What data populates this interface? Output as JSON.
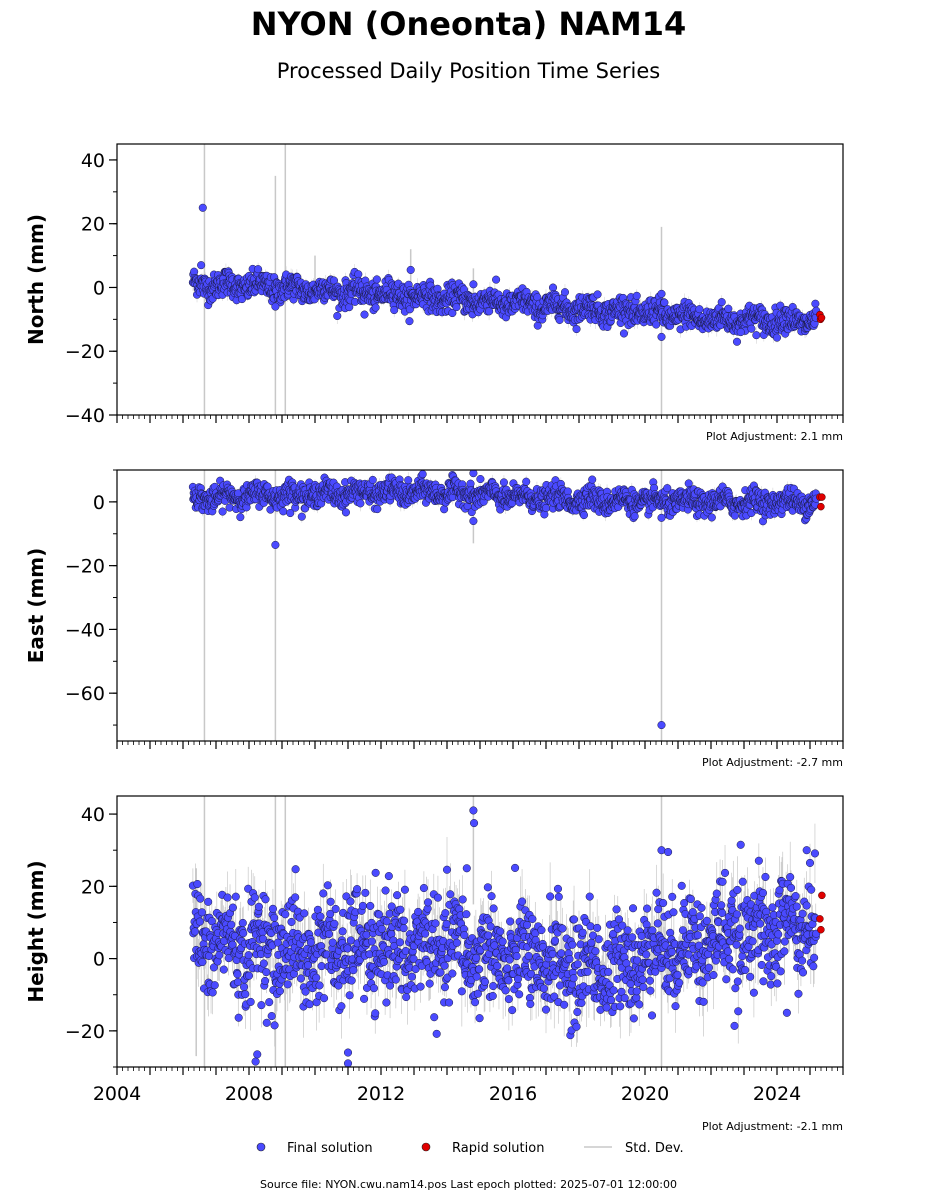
{
  "chart_data": {
    "type": "scatter",
    "title": "NYON (Oneonta) NAM14",
    "subtitle": "Processed Daily Position Time Series",
    "x_ticks": [
      "2004",
      "2008",
      "2012",
      "2016",
      "2020",
      "2024"
    ],
    "x_tick_values": [
      2004,
      2008,
      2012,
      2016,
      2020,
      2024
    ],
    "xlim": [
      2004,
      2026
    ],
    "legend": {
      "placement": "bottom-center",
      "items": [
        {
          "label": "Final solution",
          "color": "#4a4aff"
        },
        {
          "label": "Rapid solution",
          "color": "#e00000"
        },
        {
          "label": "Std. Dev.",
          "color": "#cfcfcf"
        }
      ]
    },
    "footer": "Source file: NYON.cwu.nam14.pos  Last epoch plotted: 2025-07-01 12:00:00",
    "panels": [
      {
        "ylabel": "North (mm)",
        "ylim": [
          -40,
          45
        ],
        "y_ticks": [
          -40,
          -20,
          0,
          20,
          40
        ],
        "y_tick_labels": [
          "−40",
          "−20",
          "0",
          "20",
          "40"
        ],
        "adjustment": "Plot Adjustment: 2.1 mm",
        "show_x_labels": false,
        "trend": [
          [
            2006.3,
            1.0
          ],
          [
            2008,
            0.5
          ],
          [
            2012,
            -2.0
          ],
          [
            2016,
            -5.0
          ],
          [
            2020,
            -8.0
          ],
          [
            2022,
            -10.0
          ],
          [
            2025,
            -10.5
          ]
        ],
        "scatter_sd": 2.0,
        "final_outliers": [
          [
            2006.6,
            25.0
          ],
          [
            2006.55,
            7.0
          ],
          [
            2008.8,
            -6.0
          ],
          [
            2012.9,
            5.5
          ],
          [
            2011.5,
            -8.5
          ],
          [
            2014.8,
            1.0
          ],
          [
            2020.5,
            -15.5
          ],
          [
            2020.5,
            -2.0
          ],
          [
            2022.9,
            -14.0
          ]
        ],
        "rapid": [
          [
            2025.3,
            -8.5
          ],
          [
            2025.32,
            -10.0
          ],
          [
            2025.35,
            -9.5
          ]
        ],
        "big_errorbars": [
          [
            2006.65,
            -40,
            45
          ],
          [
            2008.8,
            -40,
            35
          ],
          [
            2009.1,
            -40,
            45
          ],
          [
            2020.5,
            -40,
            19
          ],
          [
            2012.9,
            0,
            12
          ],
          [
            2014.8,
            -8,
            6
          ],
          [
            2010.0,
            -2,
            10
          ]
        ]
      },
      {
        "ylabel": "East (mm)",
        "ylim": [
          -75,
          10
        ],
        "y_ticks": [
          -60,
          -40,
          -20,
          0
        ],
        "y_tick_labels": [
          "−60",
          "−40",
          "−20",
          "0"
        ],
        "adjustment": "Plot Adjustment: -2.7 mm",
        "show_x_labels": false,
        "trend": [
          [
            2006.3,
            1.0
          ],
          [
            2008,
            2.0
          ],
          [
            2012,
            3.0
          ],
          [
            2014,
            3.0
          ],
          [
            2016,
            1.5
          ],
          [
            2020,
            0.0
          ],
          [
            2025,
            0.0
          ]
        ],
        "scatter_sd": 1.8,
        "final_outliers": [
          [
            2008.8,
            -13.5
          ],
          [
            2009.25,
            -3.5
          ],
          [
            2014.8,
            -6.0
          ],
          [
            2014.8,
            9.0
          ],
          [
            2020.5,
            -70.0
          ],
          [
            2020.5,
            -5.0
          ],
          [
            2018.4,
            7.0
          ]
        ],
        "rapid": [
          [
            2025.3,
            1.5
          ],
          [
            2025.33,
            -1.5
          ],
          [
            2025.36,
            1.5
          ]
        ],
        "big_errorbars": [
          [
            2006.65,
            -75,
            10
          ],
          [
            2008.8,
            -75,
            10
          ],
          [
            2020.5,
            -75,
            10
          ],
          [
            2014.8,
            -13,
            0
          ]
        ]
      },
      {
        "ylabel": "Height (mm)",
        "ylim": [
          -30,
          45
        ],
        "y_ticks": [
          -20,
          0,
          20,
          40
        ],
        "y_tick_labels": [
          "−20",
          "0",
          "20",
          "40"
        ],
        "adjustment": "Plot Adjustment: -2.1 mm",
        "show_x_labels": true,
        "trend": [
          [
            2006.3,
            5.0
          ],
          [
            2008,
            3.0
          ],
          [
            2010,
            2.0
          ],
          [
            2012,
            3.0
          ],
          [
            2014,
            3.0
          ],
          [
            2016,
            0.0
          ],
          [
            2018,
            -2.0
          ],
          [
            2019,
            -3.0
          ],
          [
            2020,
            2.0
          ],
          [
            2022,
            5.0
          ],
          [
            2024,
            8.0
          ],
          [
            2025,
            10.0
          ]
        ],
        "scatter_sd": 7.0,
        "final_outliers": [
          [
            2014.8,
            41.0
          ],
          [
            2014.82,
            37.5
          ],
          [
            2014.6,
            25.0
          ],
          [
            2020.5,
            30.0
          ],
          [
            2020.7,
            29.5
          ],
          [
            2008.2,
            -28.5
          ],
          [
            2008.25,
            -26.5
          ],
          [
            2011.0,
            -29.0
          ],
          [
            2024.9,
            30.0
          ],
          [
            2022.9,
            31.5
          ],
          [
            2024.3,
            -15.0
          ],
          [
            2011.0,
            -26.0
          ]
        ],
        "rapid": [
          [
            2025.3,
            11.0
          ],
          [
            2025.33,
            8.0
          ],
          [
            2025.36,
            17.5
          ]
        ],
        "big_errorbars": [
          [
            2006.65,
            -30,
            45
          ],
          [
            2008.8,
            -30,
            45
          ],
          [
            2009.1,
            -30,
            45
          ],
          [
            2020.5,
            -30,
            45
          ],
          [
            2014.8,
            15,
            45
          ],
          [
            2006.4,
            -27,
            25
          ]
        ]
      }
    ]
  }
}
